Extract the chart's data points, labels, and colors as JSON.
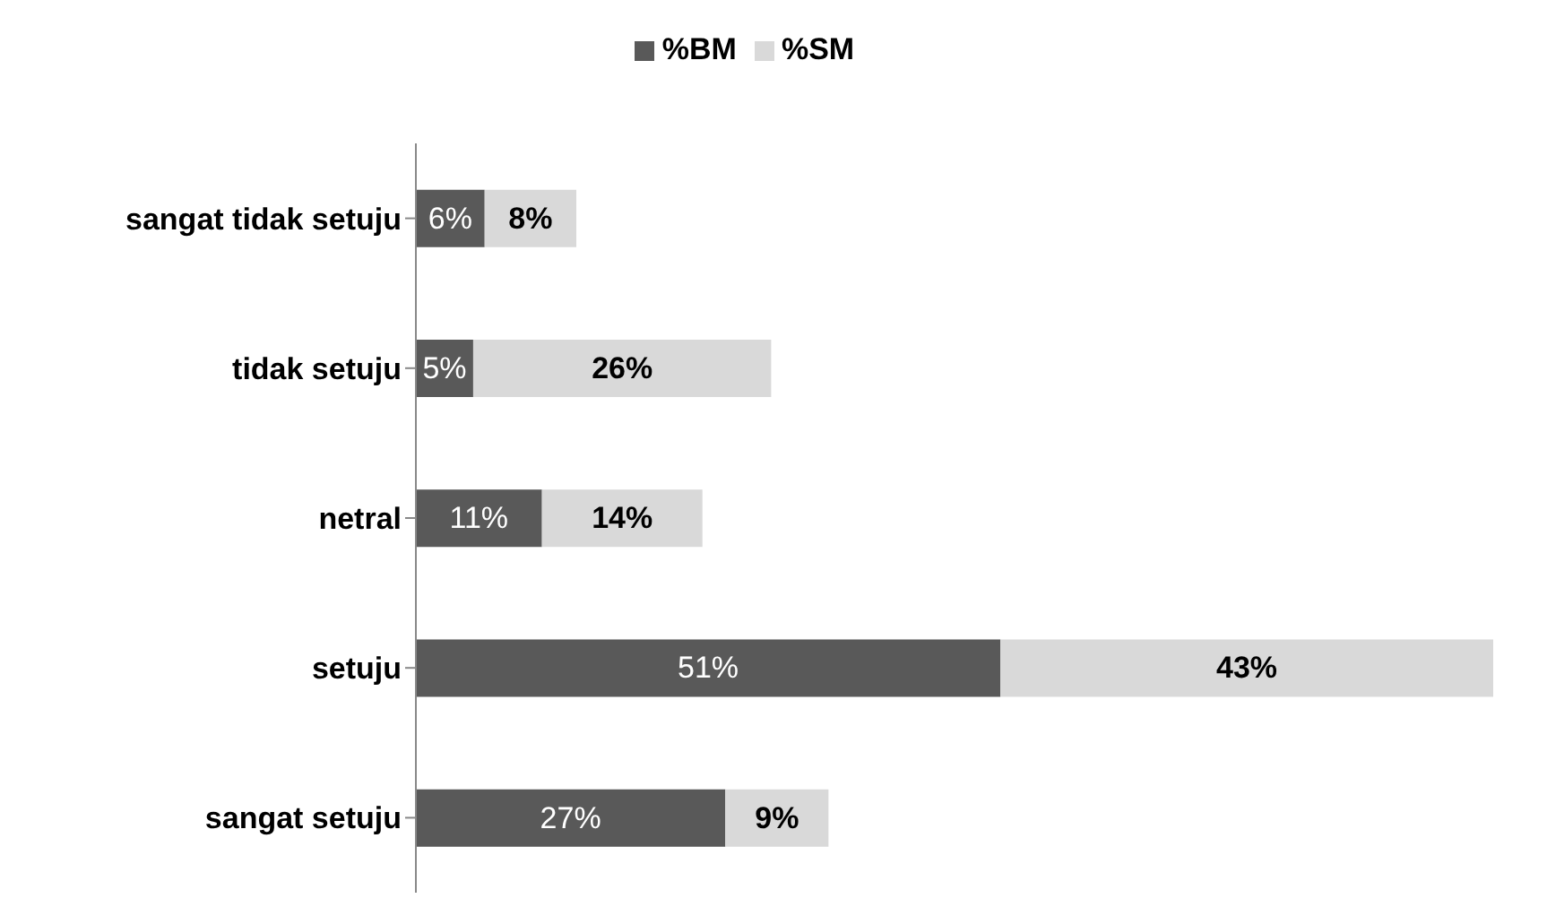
{
  "chart_data": {
    "type": "bar",
    "orientation": "horizontal",
    "stacked": true,
    "legend": "top",
    "categories": [
      "sangat tidak setuju",
      "tidak setuju",
      "netral",
      "setuju",
      "sangat setuju"
    ],
    "series": [
      {
        "name": "%BM",
        "color": "#595959",
        "values": [
          6,
          5,
          11,
          51,
          27
        ],
        "value_labels": [
          "6%",
          "5%",
          "11%",
          "51%",
          "27%"
        ]
      },
      {
        "name": "%SM",
        "color": "#d9d9d9",
        "values": [
          8,
          26,
          14,
          43,
          9
        ],
        "value_labels": [
          "8%",
          "26%",
          "14%",
          "43%",
          "9%"
        ]
      }
    ]
  }
}
